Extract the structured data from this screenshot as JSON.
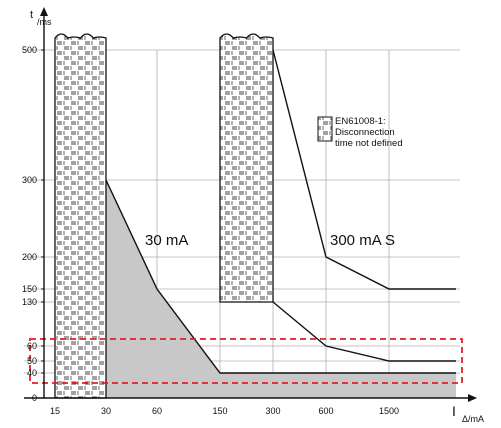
{
  "chart_data": {
    "type": "line",
    "y_axis": {
      "label_main": "t",
      "label_sub": "ms",
      "ticks": [
        "500",
        "300",
        "200",
        "150",
        "130",
        "60",
        "50",
        "40",
        "0"
      ]
    },
    "x_axis": {
      "label_main": "I",
      "label_sub": "Δ/mA",
      "ticks": [
        "15",
        "30",
        "60",
        "150",
        "300",
        "600",
        "1500"
      ]
    },
    "legend": {
      "lines": [
        "EN61008-1:",
        "Disconnection",
        "time not defined"
      ],
      "position": "top-right"
    },
    "series": [
      {
        "name": "30 mA",
        "x": [
          30,
          60,
          150,
          300,
          600,
          1500,
          3000
        ],
        "y": [
          300,
          150,
          40,
          40,
          40,
          40,
          40
        ]
      },
      {
        "name": "300 mA S",
        "x": [
          300,
          600,
          1500,
          3000
        ],
        "y": [
          500,
          200,
          150,
          150
        ]
      },
      {
        "name": "",
        "x": [
          300,
          600,
          1500,
          3000
        ],
        "y": [
          130,
          60,
          50,
          50
        ]
      }
    ],
    "undefined_regions": [
      {
        "x_from": 15,
        "x_to": 30,
        "y_from": 0,
        "y_to": 500
      },
      {
        "x_from": 150,
        "x_to": 300,
        "y_from": 130,
        "y_to": 500
      }
    ],
    "highlight_band": {
      "y_from": 40,
      "y_to": 60,
      "style": "dashed",
      "color": "#e02020"
    },
    "grid": true,
    "colors": {
      "hatch": "#555555",
      "fill": "#c8c8c8",
      "line": "#111111",
      "grid": "#b0b0b0",
      "highlight": "#e02020"
    }
  }
}
